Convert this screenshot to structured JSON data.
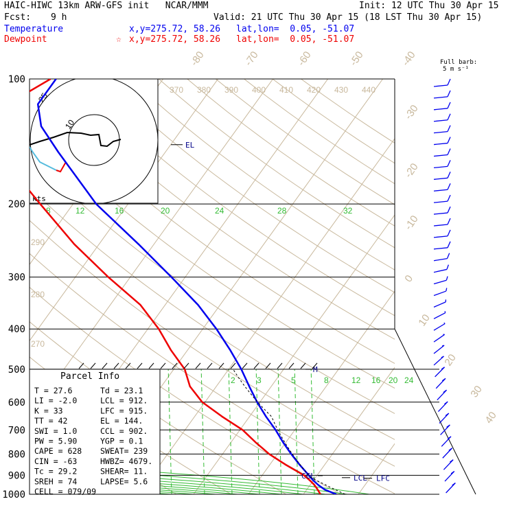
{
  "header": {
    "title": "HAIC-HIWC 13km ARW-GFS init   NCAR/MMM",
    "init": "Init: 12 UTC Thu 30 Apr 15",
    "fcst_label": "Fcst:",
    "fcst_value": "9 h",
    "valid": "Valid: 21 UTC Thu 30 Apr 15 (18 LST Thu 30 Apr 15)",
    "temperature_label": "Temperature",
    "temperature_xy": "x,y=275.72, 58.26",
    "temperature_latlon": "lat,lon=  0.05, -51.07",
    "dewpoint_label": "Dewpoint",
    "dewpoint_marker": "☆",
    "dewpoint_xy": "x,y=275.72, 58.26",
    "dewpoint_latlon": "lat,lon=  0.05, -51.07",
    "barb_title": "Full barb:",
    "barb_units": "5 m s⁻¹",
    "colors": {
      "temperature": "#0000ee",
      "dewpoint": "#ee0000",
      "black": "#000000"
    }
  },
  "chart_data": {
    "type": "line",
    "pressure_levels": [
      100,
      200,
      300,
      400,
      500,
      600,
      700,
      800,
      900,
      1000
    ],
    "isotherm_labels": [
      -80,
      -70,
      -60,
      -50,
      -40,
      -30,
      -20,
      -10,
      0,
      10,
      20,
      30,
      40
    ],
    "theta_labels": [
      370,
      380,
      390,
      400,
      410,
      420,
      430,
      440
    ],
    "theta_labels_left": [
      290,
      280,
      270
    ],
    "theta_e_labels": [
      8,
      12,
      16,
      20,
      24,
      28,
      32
    ],
    "mixing_ratio_labels": [
      2,
      3,
      5,
      8,
      12,
      16,
      20,
      24
    ],
    "series": [
      {
        "name": "Temperature",
        "color": "#0000ee",
        "points": [
          [
            1000,
            26.0
          ],
          [
            975,
            23.3
          ],
          [
            950,
            21.5
          ],
          [
            925,
            19.9
          ],
          [
            900,
            18.5
          ],
          [
            850,
            15.5
          ],
          [
            800,
            12.5
          ],
          [
            750,
            9.5
          ],
          [
            700,
            6.5
          ],
          [
            650,
            3.0
          ],
          [
            600,
            -0.5
          ],
          [
            550,
            -4.0
          ],
          [
            500,
            -7.7
          ],
          [
            450,
            -12.2
          ],
          [
            400,
            -17.5
          ],
          [
            350,
            -24.0
          ],
          [
            300,
            -32.5
          ],
          [
            250,
            -42.8
          ],
          [
            200,
            -55.8
          ],
          [
            150,
            -69.5
          ],
          [
            130,
            -76.0
          ],
          [
            115,
            -79.5
          ],
          [
            100,
            -79.5
          ]
        ]
      },
      {
        "name": "Dewpoint",
        "color": "#ee0000",
        "points": [
          [
            1000,
            23.1
          ],
          [
            975,
            22.0
          ],
          [
            950,
            20.8
          ],
          [
            925,
            19.3
          ],
          [
            900,
            17.6
          ],
          [
            850,
            13.0
          ],
          [
            800,
            8.5
          ],
          [
            750,
            4.5
          ],
          [
            700,
            0.5
          ],
          [
            650,
            -5.0
          ],
          [
            600,
            -10.5
          ],
          [
            550,
            -14.8
          ],
          [
            500,
            -18.0
          ],
          [
            450,
            -23.0
          ],
          [
            400,
            -28.0
          ],
          [
            350,
            -34.5
          ],
          [
            300,
            -44.0
          ],
          [
            250,
            -54.5
          ],
          [
            200,
            -66.0
          ],
          [
            150,
            -80.5
          ],
          [
            130,
            -85.0
          ],
          [
            115,
            -85.0
          ],
          [
            100,
            -80.5
          ]
        ]
      }
    ],
    "parcel_levels": [
      {
        "label": "EL",
        "p": 144
      },
      {
        "label": "M",
        "p": 500
      },
      {
        "label": "CCL",
        "p": 902
      },
      {
        "label": "LCL",
        "p": 912
      },
      {
        "label": "LFC",
        "p": 915
      }
    ],
    "hodograph": {
      "ring_labels": [
        "25",
        "10"
      ],
      "units_label": "kts"
    },
    "wind_barbs_count": 36
  },
  "parcel_info": {
    "title": "Parcel Info",
    "rows": [
      [
        "T   =    27.6",
        "Td  =  23.1"
      ],
      [
        "LI  =    -2.0",
        "LCL =  912."
      ],
      [
        "K   =      33",
        "LFC =  915."
      ],
      [
        "TT  =      42",
        "EL  =  144."
      ],
      [
        "SWI =     1.0",
        "CCL =  902."
      ],
      [
        "PW  =    5.90",
        "YGP =   0.1"
      ],
      [
        "CAPE =    628",
        "SWEAT=  239"
      ],
      [
        "CIN  =    -63",
        "HWBZ= 4679."
      ],
      [
        "Tc  =    29.2",
        "SHEAR=  11."
      ],
      [
        "SREH =     74",
        "LAPSE=   5.6"
      ],
      [
        "CELL = 079/09",
        ""
      ]
    ]
  }
}
